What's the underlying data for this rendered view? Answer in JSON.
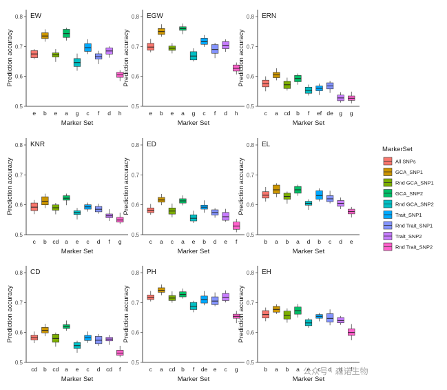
{
  "figure": {
    "ylabel": "Prediction accuracy",
    "xlabel": "Marker Set",
    "watermark": "公众号 · 森诺生物"
  },
  "legend": {
    "title": "MarkerSet",
    "items": [
      {
        "name": "All SNPs",
        "color": "#F8766D"
      },
      {
        "name": "GCA_SNP1",
        "color": "#CD9600"
      },
      {
        "name": "Rnd GCA_SNP1",
        "color": "#7CAE00"
      },
      {
        "name": "GCA_SNP2",
        "color": "#00BE67"
      },
      {
        "name": "Rnd GCA_SNP2",
        "color": "#00BFC4"
      },
      {
        "name": "Trait_SNP1",
        "color": "#00A9FF"
      },
      {
        "name": "Rnd Trait_SNP1",
        "color": "#8494FF"
      },
      {
        "name": "Trait_SNP2",
        "color": "#C77CFF"
      },
      {
        "name": "Rnd Trait_SNP2",
        "color": "#FF61CC"
      }
    ]
  },
  "chart_data": [
    {
      "type": "box",
      "title": "EW",
      "ylim": [
        0.5,
        0.8
      ],
      "yticks": [
        "0.5",
        "0.6",
        "0.7",
        "0.8"
      ],
      "medians": [
        0.675,
        0.735,
        0.672,
        0.743,
        0.646,
        0.696,
        0.666,
        0.685,
        0.605
      ],
      "letters": [
        "e",
        "b",
        "e",
        "a",
        "g",
        "c",
        "f",
        "d",
        "h"
      ]
    },
    {
      "type": "box",
      "title": "EGW",
      "ylim": [
        0.5,
        0.8
      ],
      "yticks": [
        "0.5",
        "0.6",
        "0.7",
        "0.8"
      ],
      "medians": [
        0.698,
        0.75,
        0.694,
        0.76,
        0.668,
        0.716,
        0.69,
        0.704,
        0.627
      ],
      "letters": [
        "e",
        "b",
        "e",
        "a",
        "g",
        "c",
        "f",
        "d",
        "h"
      ]
    },
    {
      "type": "box",
      "title": "ERN",
      "ylim": [
        0.5,
        0.8
      ],
      "yticks": [
        "0.5",
        "0.6",
        "0.7",
        "0.8"
      ],
      "medians": [
        0.575,
        0.605,
        0.572,
        0.593,
        0.553,
        0.56,
        0.568,
        0.528,
        0.527
      ],
      "letters": [
        "c",
        "a",
        "cd",
        "b",
        "f",
        "ef",
        "de",
        "g",
        "g"
      ]
    },
    {
      "type": "box",
      "title": "KNR",
      "ylim": [
        0.5,
        0.8
      ],
      "yticks": [
        "0.5",
        "0.6",
        "0.7",
        "0.8"
      ],
      "medians": [
        0.592,
        0.612,
        0.59,
        0.622,
        0.574,
        0.593,
        0.585,
        0.563,
        0.549
      ],
      "letters": [
        "c",
        "b",
        "cd",
        "a",
        "e",
        "c",
        "d",
        "f",
        "g"
      ]
    },
    {
      "type": "box",
      "title": "ED",
      "ylim": [
        0.5,
        0.8
      ],
      "yticks": [
        "0.5",
        "0.6",
        "0.7",
        "0.8"
      ],
      "medians": [
        0.582,
        0.616,
        0.579,
        0.613,
        0.555,
        0.592,
        0.574,
        0.56,
        0.529
      ],
      "letters": [
        "c",
        "a",
        "c",
        "a",
        "e",
        "b",
        "d",
        "e",
        "f"
      ]
    },
    {
      "type": "box",
      "title": "EL",
      "ylim": [
        0.5,
        0.8
      ],
      "yticks": [
        "0.5",
        "0.6",
        "0.7",
        "0.8"
      ],
      "medians": [
        0.632,
        0.65,
        0.628,
        0.65,
        0.605,
        0.631,
        0.62,
        0.605,
        0.577
      ],
      "letters": [
        "b",
        "a",
        "b",
        "a",
        "d",
        "b",
        "c",
        "d",
        "e"
      ]
    },
    {
      "type": "box",
      "title": "CD",
      "ylim": [
        0.5,
        0.8
      ],
      "yticks": [
        "0.5",
        "0.6",
        "0.7",
        "0.8"
      ],
      "medians": [
        0.582,
        0.607,
        0.58,
        0.62,
        0.556,
        0.582,
        0.574,
        0.578,
        0.531
      ],
      "letters": [
        "cd",
        "b",
        "cd",
        "a",
        "e",
        "c",
        "d",
        "cd",
        "f"
      ]
    },
    {
      "type": "box",
      "title": "PH",
      "ylim": [
        0.5,
        0.8
      ],
      "yticks": [
        "0.5",
        "0.6",
        "0.7",
        "0.8"
      ],
      "medians": [
        0.718,
        0.741,
        0.715,
        0.727,
        0.688,
        0.71,
        0.705,
        0.718,
        0.654
      ],
      "letters": [
        "c",
        "a",
        "cd",
        "b",
        "f",
        "de",
        "e",
        "c",
        "g"
      ]
    },
    {
      "type": "box",
      "title": "EH",
      "ylim": [
        0.5,
        0.8
      ],
      "yticks": [
        "0.5",
        "0.6",
        "0.7",
        "0.8"
      ],
      "medians": [
        0.66,
        0.677,
        0.657,
        0.673,
        0.632,
        0.654,
        0.647,
        0.64,
        0.6
      ],
      "letters": [
        "b",
        "a",
        "b",
        "a",
        "e",
        "c",
        "d",
        "d",
        "f"
      ]
    }
  ]
}
